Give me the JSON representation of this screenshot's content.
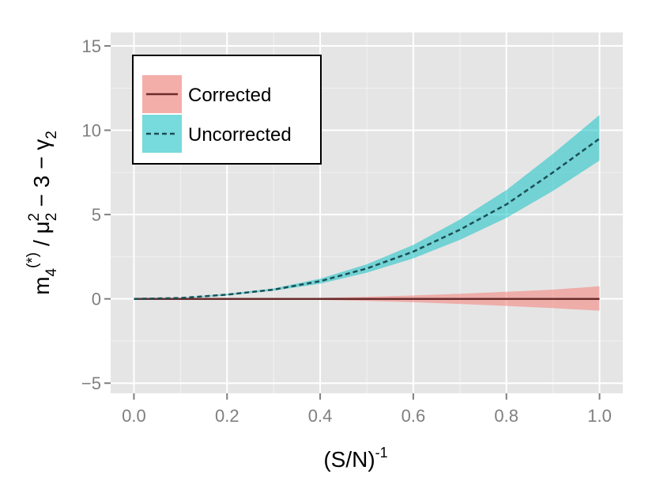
{
  "chart_data": {
    "type": "area",
    "xlabel": "(S/N)",
    "xlabel_sup": "-1",
    "ylabel": {
      "m": "m",
      "m_sub": "4",
      "m_sup": "(*)",
      "slash": " / ",
      "mu": "μ",
      "mu_sub": "2",
      "mu_sup": "2",
      "rest": " − 3 − ",
      "gamma": "γ",
      "gamma_sub": "2"
    },
    "xlim": [
      -0.05,
      1.05
    ],
    "ylim": [
      -5.6,
      15.8
    ],
    "x_ticks": [
      0.0,
      0.2,
      0.4,
      0.6,
      0.8,
      1.0
    ],
    "x_tick_labels": [
      "0.0",
      "0.2",
      "0.4",
      "0.6",
      "0.8",
      "1.0"
    ],
    "y_ticks": [
      -5,
      0,
      5,
      10,
      15
    ],
    "y_tick_labels": [
      "−5",
      "0",
      "5",
      "10",
      "15"
    ],
    "grid": true,
    "legend_position": "top-left",
    "x": [
      0.0,
      0.1,
      0.2,
      0.3,
      0.4,
      0.5,
      0.6,
      0.7,
      0.8,
      0.9,
      1.0
    ],
    "series": [
      {
        "name": "Corrected",
        "line_style": "solid",
        "line_color": "#6b2c2c",
        "fill_color": "#f8766d",
        "values": [
          0,
          0,
          0,
          0,
          0,
          0,
          0,
          0,
          0,
          0,
          0
        ],
        "lower": [
          0,
          0,
          -0.01,
          -0.03,
          -0.06,
          -0.12,
          -0.2,
          -0.3,
          -0.42,
          -0.55,
          -0.7
        ],
        "upper": [
          0,
          0,
          0.01,
          0.03,
          0.06,
          0.12,
          0.2,
          0.3,
          0.42,
          0.55,
          0.75
        ]
      },
      {
        "name": "Uncorrected",
        "line_style": "dashed",
        "line_color": "#1a4f55",
        "fill_color": "#00bfc4",
        "values": [
          0,
          0.05,
          0.25,
          0.55,
          1.05,
          1.8,
          2.8,
          4.1,
          5.6,
          7.5,
          9.5
        ],
        "lower": [
          0,
          0.04,
          0.2,
          0.48,
          0.9,
          1.55,
          2.4,
          3.5,
          4.8,
          6.4,
          8.2
        ],
        "upper": [
          0,
          0.06,
          0.3,
          0.62,
          1.2,
          2.05,
          3.2,
          4.7,
          6.45,
          8.6,
          10.9
        ]
      }
    ]
  }
}
